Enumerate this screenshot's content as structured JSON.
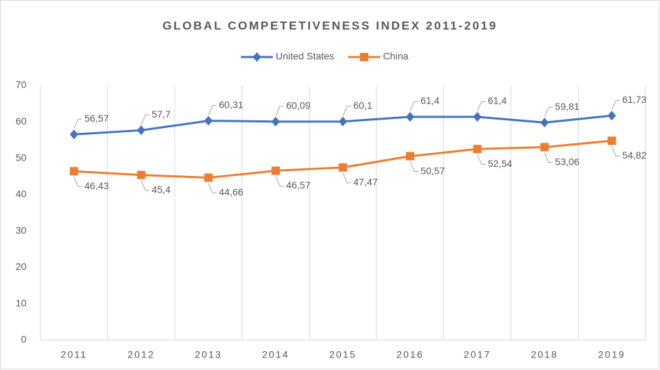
{
  "chart_data": {
    "type": "line",
    "title": "GLOBAL COMPETETIVENESS INDEX 2011-2019",
    "categories": [
      "2011",
      "2012",
      "2013",
      "2014",
      "2015",
      "2016",
      "2017",
      "2018",
      "2019"
    ],
    "series": [
      {
        "name": "United States",
        "color": "#4472c4",
        "marker": "diamond",
        "values": [
          56.57,
          57.7,
          60.31,
          60.09,
          60.1,
          61.4,
          61.4,
          59.81,
          61.73
        ],
        "value_labels": [
          "56,57",
          "57,7",
          "60,31",
          "60,09",
          "60,1",
          "61,4",
          "61,4",
          "59,81",
          "61,73"
        ]
      },
      {
        "name": "China",
        "color": "#ed7d31",
        "marker": "square",
        "values": [
          46.43,
          45.4,
          44.66,
          46.57,
          47.47,
          50.57,
          52.54,
          53.06,
          54.82
        ],
        "value_labels": [
          "46,43",
          "45,4",
          "44,66",
          "46,57",
          "47,47",
          "50,57",
          "52,54",
          "53,06",
          "54,82"
        ]
      }
    ],
    "ylim": [
      0,
      70
    ],
    "yticks": [
      0,
      10,
      20,
      30,
      40,
      50,
      60,
      70
    ],
    "legend": "top",
    "grid": "vertical"
  }
}
